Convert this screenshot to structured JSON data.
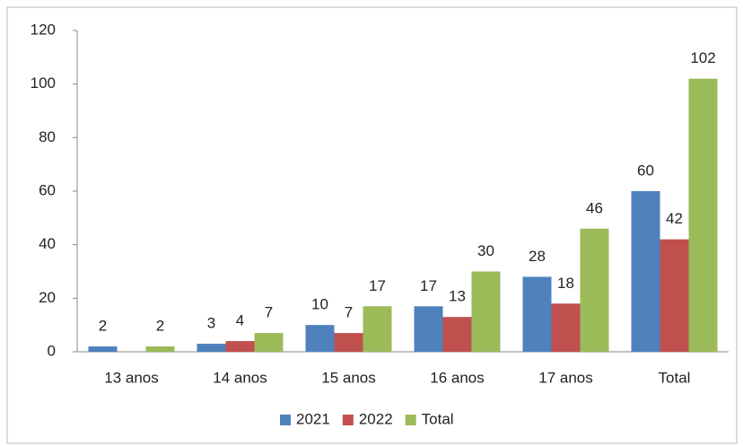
{
  "chart_data": {
    "type": "bar",
    "categories": [
      "13 anos",
      "14 anos",
      "15 anos",
      "16 anos",
      "17 anos",
      "Total"
    ],
    "series": [
      {
        "name": "2021",
        "color": "#4f81bd",
        "values": [
          2,
          3,
          10,
          17,
          28,
          60
        ]
      },
      {
        "name": "2022",
        "color": "#c0504d",
        "values": [
          null,
          4,
          7,
          13,
          18,
          42
        ]
      },
      {
        "name": "Total",
        "color": "#9bbb59",
        "values": [
          2,
          7,
          17,
          30,
          46,
          102
        ]
      }
    ],
    "ylim": [
      0,
      120
    ],
    "yticks": [
      0,
      20,
      40,
      60,
      80,
      100,
      120
    ],
    "grid": false,
    "legend": "bottom"
  }
}
